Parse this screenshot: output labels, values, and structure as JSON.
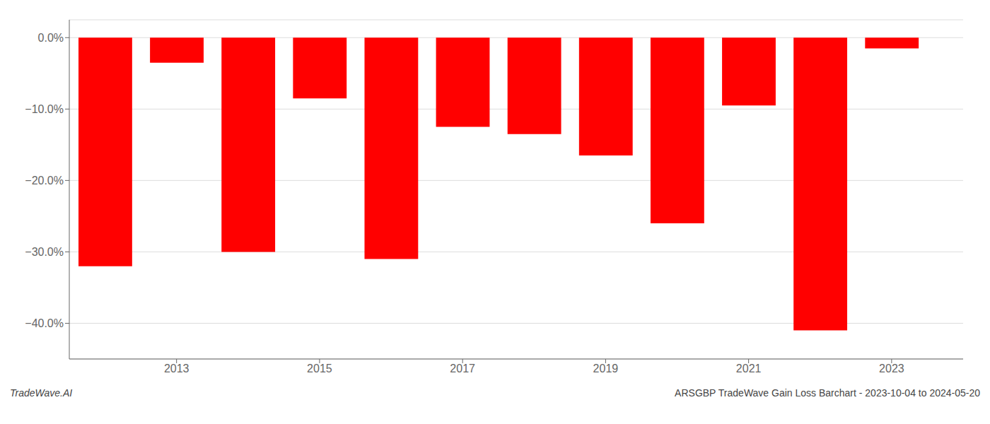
{
  "chart_data": {
    "type": "bar",
    "x": [
      2012,
      2013,
      2014,
      2015,
      2016,
      2017,
      2018,
      2019,
      2020,
      2021,
      2022,
      2023
    ],
    "values": [
      -32.0,
      -3.5,
      -30.0,
      -8.5,
      -31.0,
      -12.5,
      -13.5,
      -16.5,
      -26.0,
      -9.5,
      -41.0,
      -1.5
    ],
    "color": "#ff0000",
    "xlim": [
      2011.5,
      2024.0
    ],
    "xticks": [
      2013,
      2015,
      2017,
      2019,
      2021,
      2023
    ],
    "ylim": [
      -45,
      2.5
    ],
    "yticks": [
      {
        "value": 0.0,
        "label": "0.0%"
      },
      {
        "value": -10.0,
        "label": "−10.0%"
      },
      {
        "value": -20.0,
        "label": "−20.0%"
      },
      {
        "value": -30.0,
        "label": "−30.0%"
      },
      {
        "value": -40.0,
        "label": "−40.0%"
      }
    ],
    "grid": true,
    "annotations": [
      "TradeWave.AI",
      "ARSGBP TradeWave Gain Loss Barchart - 2023-10-04 to 2024-05-20"
    ]
  }
}
